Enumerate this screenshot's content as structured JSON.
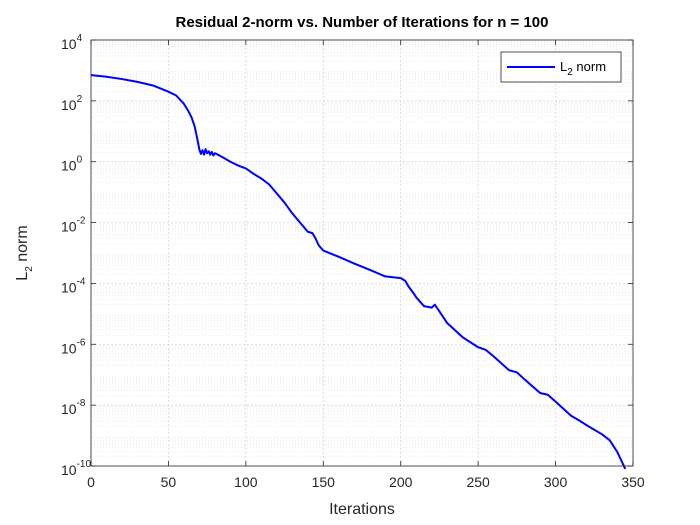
{
  "chart_data": {
    "type": "line",
    "title": "Residual 2-norm vs. Number of Iterations for n = 100",
    "xlabel": "Iterations",
    "ylabel_main": "L",
    "ylabel_sub": "2",
    "ylabel_rest": " norm",
    "xlim": [
      0,
      350
    ],
    "ylim": [
      1e-10,
      10000.0
    ],
    "yscale": "log",
    "grid": true,
    "minor_grid": true,
    "legend_position": "top-right",
    "x_ticks": [
      0,
      50,
      100,
      150,
      200,
      250,
      300,
      350
    ],
    "y_ticks": [
      {
        "value": 10000.0,
        "base": "10",
        "exp": "4"
      },
      {
        "value": 100.0,
        "base": "10",
        "exp": "2"
      },
      {
        "value": 1.0,
        "base": "10",
        "exp": "0"
      },
      {
        "value": 0.01,
        "base": "10",
        "exp": "-2"
      },
      {
        "value": 0.0001,
        "base": "10",
        "exp": "-4"
      },
      {
        "value": 1e-06,
        "base": "10",
        "exp": "-6"
      },
      {
        "value": 1e-08,
        "base": "10",
        "exp": "-8"
      },
      {
        "value": 1e-10,
        "base": "10",
        "exp": "-10"
      }
    ],
    "series": [
      {
        "legend_main": "L",
        "legend_sub": "2",
        "legend_rest": " norm",
        "color": "#0000ff",
        "x": [
          0,
          10,
          20,
          30,
          40,
          50,
          55,
          60,
          63,
          65,
          67,
          68,
          69,
          70,
          71,
          72,
          73,
          74,
          75,
          76,
          77,
          78,
          79,
          80,
          82,
          85,
          90,
          95,
          100,
          105,
          110,
          115,
          120,
          125,
          130,
          135,
          140,
          143,
          145,
          147,
          150,
          160,
          170,
          180,
          190,
          195,
          200,
          203,
          205,
          208,
          210,
          215,
          220,
          222,
          225,
          230,
          240,
          250,
          255,
          260,
          270,
          275,
          280,
          290,
          295,
          300,
          310,
          315,
          320,
          330,
          335,
          340,
          345
        ],
        "y": [
          700,
          620,
          520,
          420,
          320,
          200,
          150,
          80,
          45,
          28,
          14,
          8,
          4.5,
          2.5,
          1.8,
          2.4,
          1.7,
          2.6,
          1.9,
          2.2,
          1.7,
          2.1,
          1.6,
          1.9,
          1.7,
          1.4,
          1.0,
          0.75,
          0.6,
          0.4,
          0.28,
          0.18,
          0.09,
          0.045,
          0.02,
          0.01,
          0.005,
          0.0045,
          0.003,
          0.0018,
          0.0012,
          0.00075,
          0.00045,
          0.00028,
          0.00017,
          0.00016,
          0.00015,
          0.00012,
          8e-05,
          5e-05,
          3.5e-05,
          1.8e-05,
          1.6e-05,
          2e-05,
          1.2e-05,
          5e-06,
          1.7e-06,
          8e-07,
          6.5e-07,
          4e-07,
          1.4e-07,
          1.2e-07,
          7e-08,
          2.5e-08,
          2.2e-08,
          1.3e-08,
          4.5e-09,
          3.2e-09,
          2.2e-09,
          1.1e-09,
          7e-10,
          2.8e-10,
          8e-11
        ]
      }
    ]
  }
}
